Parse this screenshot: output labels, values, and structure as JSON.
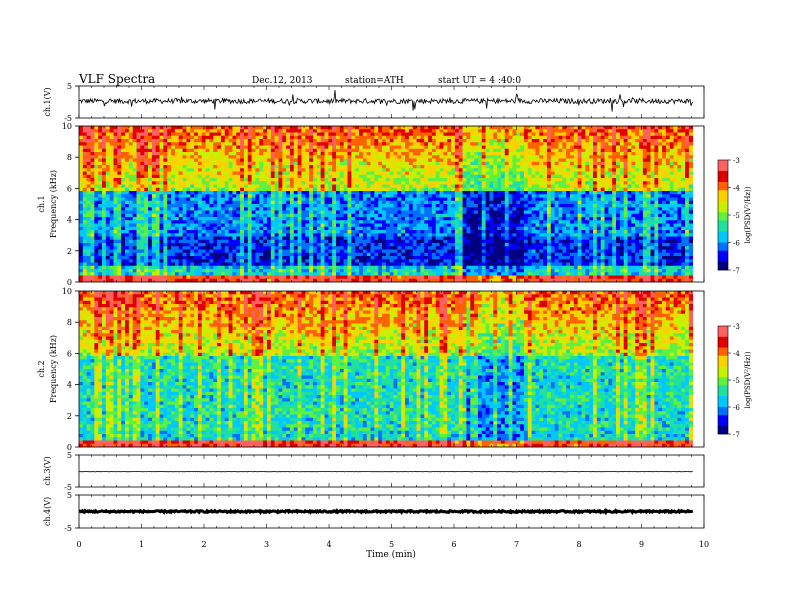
{
  "header": {
    "title": "VLF  Spectra",
    "date": "Dec.12, 2013",
    "station": "station=ATH",
    "start": "start  UT  =  4  :40:0"
  },
  "colormap": [
    "#000080",
    "#0000ff",
    "#0070ff",
    "#00c8ff",
    "#20e0a0",
    "#60f040",
    "#c8f000",
    "#ffd000",
    "#ff6000",
    "#e00000",
    "#ff6060",
    "#ffffff"
  ],
  "chart_data": [
    {
      "type": "line",
      "panel": "ch1-waveform",
      "ylabel": "ch.1(V)",
      "yticks": [
        "5",
        "-5"
      ],
      "ylim": [
        -5,
        5
      ],
      "xlim": [
        0,
        10
      ],
      "baseline": 0.3,
      "noise_amplitude": 0.8,
      "x_end": 9.82
    },
    {
      "type": "heatmap",
      "panel": "ch1-spectrogram",
      "ylabel": "ch.1",
      "ylabel2": "Frequency  (kHz)",
      "yticks": [
        "0",
        "2",
        "4",
        "6",
        "8",
        "10"
      ],
      "ylim": [
        0,
        10
      ],
      "xlim": [
        0,
        10
      ],
      "x_end": 9.82,
      "colorbar": {
        "label": "log(PSD(V²/Hz))",
        "ticks": [
          "-3",
          "-4",
          "-5",
          "-6",
          "-7"
        ],
        "range": [
          -7,
          -3
        ]
      }
    },
    {
      "type": "heatmap",
      "panel": "ch2-spectrogram",
      "ylabel": "ch.2",
      "ylabel2": "Frequency  (kHz)",
      "yticks": [
        "0",
        "2",
        "4",
        "6",
        "8",
        "10"
      ],
      "ylim": [
        0,
        10
      ],
      "xlim": [
        0,
        10
      ],
      "x_end": 9.82,
      "colorbar": {
        "label": "log(PSD(V²/Hz))",
        "ticks": [
          "-3",
          "-4",
          "-5",
          "-6",
          "-7"
        ],
        "range": [
          -7,
          -3
        ]
      }
    },
    {
      "type": "line",
      "panel": "ch3-waveform",
      "ylabel": "ch.3(V)",
      "yticks": [
        "5",
        "-5"
      ],
      "ylim": [
        -5,
        5
      ],
      "xlim": [
        0,
        10
      ],
      "baseline": -0.2,
      "noise_amplitude": 0.05,
      "x_end": 9.82
    },
    {
      "type": "line",
      "panel": "ch4-waveform",
      "ylabel": "ch.4(V)",
      "yticks": [
        "5",
        "-5"
      ],
      "ylim": [
        -5,
        5
      ],
      "xlim": [
        0,
        10
      ],
      "baseline": 0.0,
      "noise_amplitude": 0.25,
      "x_end": 9.82
    }
  ],
  "xaxis": {
    "label": "Time  (min)",
    "ticks": [
      "0",
      "1",
      "2",
      "3",
      "4",
      "5",
      "6",
      "7",
      "8",
      "9",
      "10"
    ]
  }
}
